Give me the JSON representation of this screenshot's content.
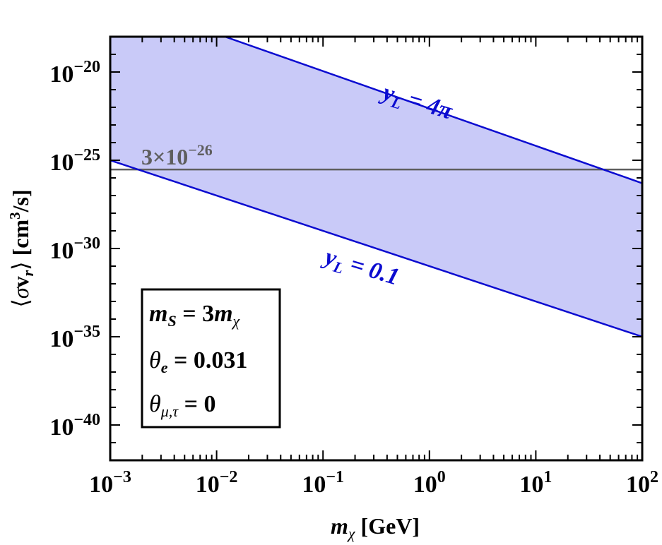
{
  "chart_data": {
    "type": "area",
    "x_scale": "log",
    "y_scale": "log",
    "xlim": [
      0.001,
      100
    ],
    "ylim": [
      1e-42,
      1e-18
    ],
    "xlabel": "m_χ [GeV]",
    "ylabel": "⟨σv_r⟩ [cm³/s]",
    "x_ticks": [
      {
        "value": 0.001,
        "base": "10",
        "exp": "−3"
      },
      {
        "value": 0.01,
        "base": "10",
        "exp": "−2"
      },
      {
        "value": 0.1,
        "base": "10",
        "exp": "−1"
      },
      {
        "value": 1,
        "base": "10",
        "exp": "0"
      },
      {
        "value": 10,
        "base": "10",
        "exp": "1"
      },
      {
        "value": 100,
        "base": "10",
        "exp": "2"
      }
    ],
    "y_ticks": [
      {
        "value": 1e-20,
        "base": "10",
        "exp": "−20"
      },
      {
        "value": 1e-25,
        "base": "10",
        "exp": "−25"
      },
      {
        "value": 1e-30,
        "base": "10",
        "exp": "−30"
      },
      {
        "value": 1e-35,
        "base": "10",
        "exp": "−35"
      },
      {
        "value": 1e-40,
        "base": "10",
        "exp": "−40"
      }
    ],
    "series": [
      {
        "name": "y_L = 4π",
        "x": [
          0.012,
          100
        ],
        "y": [
          1e-18,
          5e-27
        ]
      },
      {
        "name": "y_L = 0.1",
        "x": [
          0.001,
          100
        ],
        "y": [
          1e-25,
          1e-35
        ]
      }
    ],
    "band": {
      "between": [
        "y_L = 4π",
        "y_L = 0.1"
      ],
      "fill_color": "#c9caf8"
    },
    "reference_line": {
      "y": 3e-26,
      "label_base": "3×10",
      "label_exp": "−26",
      "color": "#5e5e5e"
    },
    "line_color": "#0b0bd0",
    "grid": false,
    "band_labels": {
      "upper": {
        "var": "y",
        "sub": "L",
        "rest": " = 4π"
      },
      "lower": {
        "var": "y",
        "sub": "L",
        "rest": " = 0.1"
      }
    },
    "legend_box": {
      "placement": "bottom-left",
      "line1": {
        "m": "m",
        "sub": "S",
        "mid": " = 3",
        "m2": "m",
        "sub2": "χ"
      },
      "line2": {
        "theta": "θ",
        "sub": "e",
        "val": " = 0.031"
      },
      "line3": {
        "theta": "θ",
        "sub": "μ,τ",
        "val": " = 0"
      }
    }
  }
}
